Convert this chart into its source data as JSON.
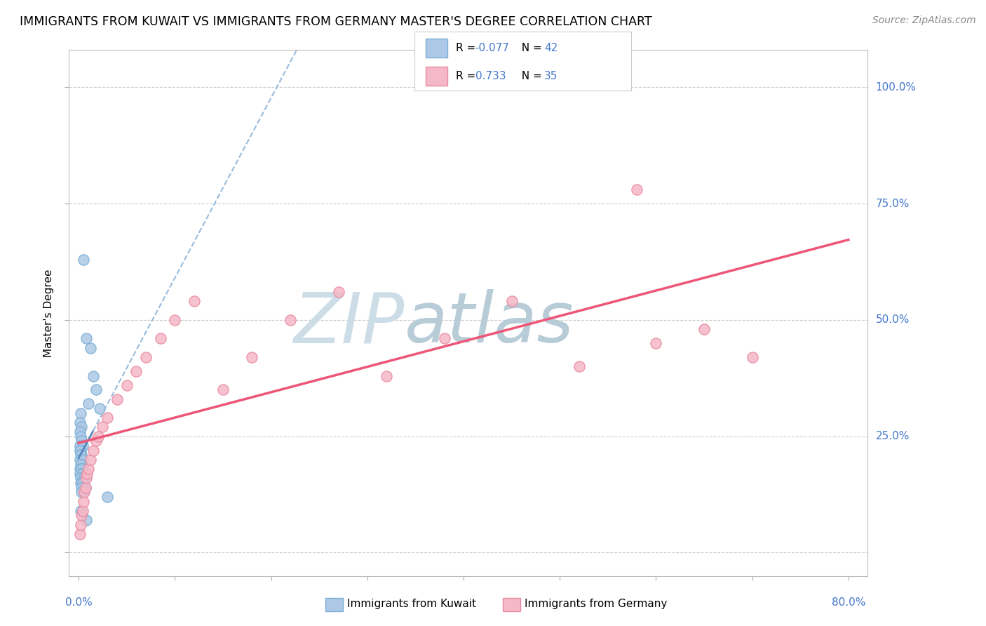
{
  "title": "IMMIGRANTS FROM KUWAIT VS IMMIGRANTS FROM GERMANY MASTER'S DEGREE CORRELATION CHART",
  "source": "Source: ZipAtlas.com",
  "ylabel": "Master's Degree",
  "r1": "-0.077",
  "n1": "42",
  "r2": "0.733",
  "n2": "35",
  "color_kuwait_fill": "#adc8e6",
  "color_kuwait_edge": "#7aafd4",
  "color_germany_fill": "#f5b8c8",
  "color_germany_edge": "#e88aa0",
  "color_kuwait_line": "#5588bb",
  "color_germany_line": "#ee5577",
  "color_kuwait_dash": "#99bbdd",
  "color_tick_label": "#4477cc",
  "color_grid": "#cccccc",
  "xlim": [
    0.0,
    0.8
  ],
  "ylim": [
    0.0,
    1.0
  ],
  "ytick_vals": [
    0.0,
    0.25,
    0.5,
    0.75,
    1.0
  ],
  "ytick_labels": [
    "",
    "25.0%",
    "50.0%",
    "75.0%",
    "100.0%"
  ],
  "kuwait_x": [
    0.002,
    0.001,
    0.003,
    0.001,
    0.002,
    0.003,
    0.001,
    0.004,
    0.002,
    0.001,
    0.003,
    0.002,
    0.001,
    0.004,
    0.003,
    0.002,
    0.001,
    0.005,
    0.003,
    0.002,
    0.001,
    0.004,
    0.003,
    0.002,
    0.006,
    0.003,
    0.002,
    0.004,
    0.007,
    0.003,
    0.005,
    0.003,
    0.008,
    0.012,
    0.015,
    0.005,
    0.018,
    0.01,
    0.022,
    0.03,
    0.002,
    0.008
  ],
  "kuwait_y": [
    0.3,
    0.28,
    0.27,
    0.26,
    0.25,
    0.24,
    0.23,
    0.23,
    0.22,
    0.22,
    0.21,
    0.21,
    0.2,
    0.2,
    0.19,
    0.19,
    0.18,
    0.18,
    0.18,
    0.17,
    0.17,
    0.17,
    0.16,
    0.16,
    0.16,
    0.15,
    0.15,
    0.15,
    0.14,
    0.14,
    0.13,
    0.13,
    0.46,
    0.44,
    0.38,
    0.63,
    0.35,
    0.32,
    0.31,
    0.12,
    0.09,
    0.07
  ],
  "germany_x": [
    0.001,
    0.002,
    0.003,
    0.004,
    0.005,
    0.006,
    0.007,
    0.008,
    0.009,
    0.01,
    0.012,
    0.015,
    0.018,
    0.02,
    0.025,
    0.03,
    0.04,
    0.05,
    0.06,
    0.07,
    0.085,
    0.1,
    0.12,
    0.15,
    0.18,
    0.22,
    0.27,
    0.32,
    0.38,
    0.45,
    0.52,
    0.6,
    0.65,
    0.7,
    0.58
  ],
  "germany_y": [
    0.04,
    0.06,
    0.08,
    0.09,
    0.11,
    0.13,
    0.14,
    0.16,
    0.17,
    0.18,
    0.2,
    0.22,
    0.24,
    0.25,
    0.27,
    0.29,
    0.33,
    0.36,
    0.39,
    0.42,
    0.46,
    0.5,
    0.54,
    0.35,
    0.42,
    0.5,
    0.56,
    0.38,
    0.46,
    0.54,
    0.4,
    0.45,
    0.48,
    0.42,
    0.78
  ],
  "legend_label1": "Immigrants from Kuwait",
  "legend_label2": "Immigrants from Germany"
}
